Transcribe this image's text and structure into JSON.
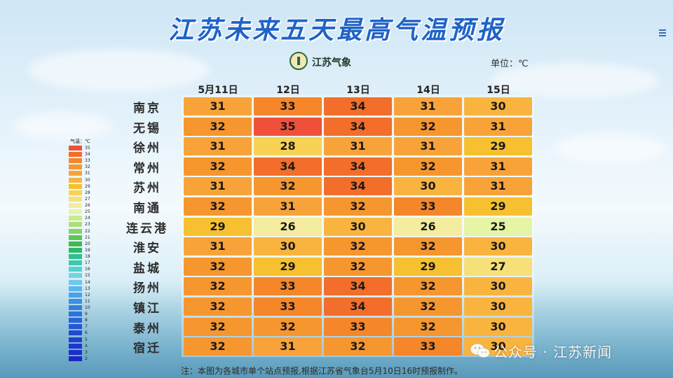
{
  "title": "江苏未来五天最高气温预报",
  "logo_text": "江苏气象",
  "unit": "单位：℃",
  "legend_title": "气温：℃",
  "note": "注：本图为各城市单个站点预报,根据江苏省气象台5月10日16时预报制作。",
  "watermark": "公众号 · 江苏新闻",
  "chart_data": {
    "type": "table",
    "title": "江苏未来五天最高气温预报",
    "columns": [
      "5月11日",
      "12日",
      "13日",
      "14日",
      "15日"
    ],
    "rows": [
      {
        "city": "南京",
        "values": [
          31,
          33,
          34,
          31,
          30
        ]
      },
      {
        "city": "无锡",
        "values": [
          32,
          35,
          34,
          32,
          31
        ]
      },
      {
        "city": "徐州",
        "values": [
          31,
          28,
          31,
          31,
          29
        ]
      },
      {
        "city": "常州",
        "values": [
          32,
          34,
          34,
          32,
          31
        ]
      },
      {
        "city": "苏州",
        "values": [
          31,
          32,
          34,
          30,
          31
        ]
      },
      {
        "city": "南通",
        "values": [
          32,
          31,
          32,
          33,
          29
        ]
      },
      {
        "city": "连云港",
        "values": [
          29,
          26,
          30,
          26,
          25
        ]
      },
      {
        "city": "淮安",
        "values": [
          31,
          30,
          32,
          32,
          30
        ]
      },
      {
        "city": "盐城",
        "values": [
          32,
          29,
          32,
          29,
          27
        ]
      },
      {
        "city": "扬州",
        "values": [
          32,
          33,
          34,
          32,
          30
        ]
      },
      {
        "city": "镇江",
        "values": [
          32,
          33,
          34,
          32,
          30
        ]
      },
      {
        "city": "泰州",
        "values": [
          32,
          32,
          33,
          32,
          30
        ]
      },
      {
        "city": "宿迁",
        "values": [
          32,
          31,
          32,
          33,
          30
        ]
      }
    ],
    "legend": {
      "labels": [
        35,
        34,
        33,
        32,
        31,
        30,
        29,
        28,
        27,
        26,
        25,
        24,
        23,
        22,
        21,
        20,
        19,
        18,
        17,
        16,
        15,
        14,
        13,
        12,
        11,
        10,
        9,
        8,
        7,
        6,
        5,
        4,
        3,
        2
      ],
      "colors": [
        "#f0503a",
        "#f26e2a",
        "#f5862a",
        "#f6962f",
        "#f8a33a",
        "#f9b43f",
        "#f6c030",
        "#f8d254",
        "#f6e07a",
        "#f4ec9e",
        "#e6f4a6",
        "#c9ec8e",
        "#a9e07a",
        "#84d465",
        "#5cc751",
        "#3dba4e",
        "#2fb868",
        "#31c08e",
        "#3cc9b0",
        "#55d2d0",
        "#6fd6e6",
        "#6dc8ef",
        "#58b6ee",
        "#47a2ea",
        "#3b8fe6",
        "#3380e2",
        "#2e72de",
        "#2a64da",
        "#2657d6",
        "#234ad2",
        "#2140cf",
        "#1f37cc",
        "#1c2fc9",
        "#1a27c4"
      ]
    }
  }
}
